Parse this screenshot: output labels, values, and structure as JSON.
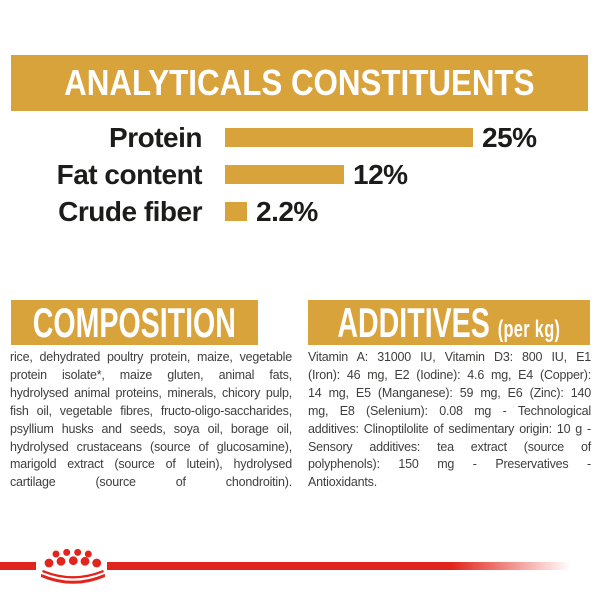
{
  "colors": {
    "gold": "#D9A33C",
    "red": "#E2251C",
    "ink": "#1C1C1A",
    "gray": "#3E3E3D",
    "banner_text": "#FFFFFF",
    "background": "#FFFFFF"
  },
  "analytical": {
    "title": "ANALYTICALS CONSTITUENTS",
    "chart_data": {
      "type": "bar",
      "orientation": "horizontal",
      "categories": [
        "Protein",
        "Fat content",
        "Crude fiber"
      ],
      "values": [
        25,
        12,
        2.2
      ],
      "value_labels": [
        "25%",
        "12%",
        "2.2%"
      ],
      "unit": "%",
      "xlim": [
        0,
        25
      ],
      "bar_color": "#D9A33C",
      "grid": "off",
      "legend": "none",
      "title": "ANALYTICALS CONSTITUENTS"
    }
  },
  "composition": {
    "title": "COMPOSITION",
    "body": "rice, dehydrated poultry protein, maize, vegetable protein isolate*, maize gluten, animal fats, hydrolysed animal proteins, minerals, chicory pulp, fish oil, vegetable fibres, fructo-oligo-saccharides, psyllium husks and seeds, soya oil, borage oil, hydrolysed crustaceans (source of glucosamine), marigold extract (source of lutein), hydrolysed cartilage (source of chondroitin)."
  },
  "additives": {
    "title": "ADDITIVES",
    "subtitle": "(per kg)",
    "body": "Vitamin A: 31000 IU, Vitamin D3: 800 IU, E1 (Iron): 46 mg, E2 (Iodine): 4.6 mg, E4 (Copper): 14 mg, E5 (Manganese): 59 mg, E6 (Zinc): 140 mg, E8 (Selenium): 0.08 mg - Technological additives: Clinoptilolite of sedimentary origin: 10 g - Sensory additives: tea extract (source of polyphenols): 150 mg - Preservatives - Antioxidants.",
    "title_full": "ADDITIVES (per kg)"
  },
  "footer": {
    "logo": "royal-canin-crown-icon",
    "brand_color": "#E2251C"
  }
}
